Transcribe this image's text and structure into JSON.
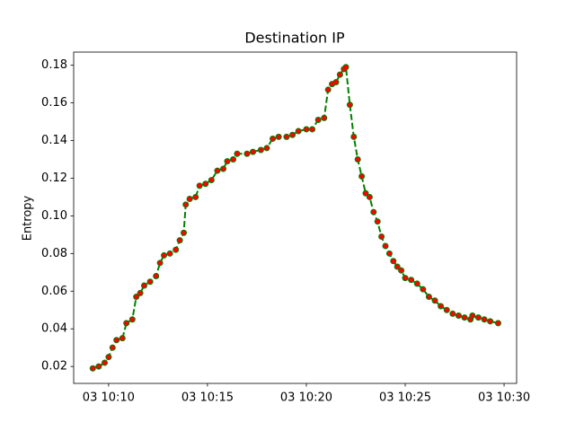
{
  "chart_data": {
    "type": "line",
    "title": "Destination IP",
    "y_label": "Entropy",
    "x": [
      "03 10:09:12",
      "03 10:09:30",
      "03 10:09:48",
      "03 10:10:00",
      "03 10:10:12",
      "03 10:10:24",
      "03 10:10:42",
      "03 10:10:54",
      "03 10:11:12",
      "03 10:11:24",
      "03 10:11:36",
      "03 10:11:48",
      "03 10:12:06",
      "03 10:12:24",
      "03 10:12:36",
      "03 10:12:48",
      "03 10:13:06",
      "03 10:13:24",
      "03 10:13:36",
      "03 10:13:48",
      "03 10:13:54",
      "03 10:14:06",
      "03 10:14:24",
      "03 10:14:36",
      "03 10:14:54",
      "03 10:15:12",
      "03 10:15:30",
      "03 10:15:48",
      "03 10:16:00",
      "03 10:16:18",
      "03 10:16:30",
      "03 10:17:00",
      "03 10:17:18",
      "03 10:17:42",
      "03 10:18:00",
      "03 10:18:18",
      "03 10:18:36",
      "03 10:19:00",
      "03 10:19:18",
      "03 10:19:36",
      "03 10:20:00",
      "03 10:20:18",
      "03 10:20:36",
      "03 10:20:54",
      "03 10:21:06",
      "03 10:21:18",
      "03 10:21:30",
      "03 10:21:42",
      "03 10:21:54",
      "03 10:22:00",
      "03 10:22:12",
      "03 10:22:24",
      "03 10:22:36",
      "03 10:22:48",
      "03 10:23:00",
      "03 10:23:12",
      "03 10:23:24",
      "03 10:23:36",
      "03 10:23:48",
      "03 10:24:00",
      "03 10:24:12",
      "03 10:24:24",
      "03 10:24:36",
      "03 10:24:48",
      "03 10:25:00",
      "03 10:25:18",
      "03 10:25:36",
      "03 10:25:54",
      "03 10:26:12",
      "03 10:26:30",
      "03 10:26:48",
      "03 10:27:06",
      "03 10:27:24",
      "03 10:27:42",
      "03 10:28:00",
      "03 10:28:18",
      "03 10:28:24",
      "03 10:28:42",
      "03 10:29:00",
      "03 10:29:18",
      "03 10:29:42"
    ],
    "series": [
      {
        "color": "green",
        "marker_color": "red",
        "line_style": "dashed",
        "values": [
          0.019,
          0.02,
          0.022,
          0.025,
          0.03,
          0.034,
          0.035,
          0.043,
          0.045,
          0.057,
          0.059,
          0.063,
          0.065,
          0.068,
          0.075,
          0.079,
          0.08,
          0.082,
          0.087,
          0.091,
          0.106,
          0.109,
          0.11,
          0.116,
          0.117,
          0.119,
          0.124,
          0.125,
          0.129,
          0.13,
          0.133,
          0.133,
          0.134,
          0.135,
          0.136,
          0.141,
          0.142,
          0.142,
          0.143,
          0.145,
          0.146,
          0.146,
          0.151,
          0.152,
          0.167,
          0.17,
          0.171,
          0.175,
          0.178,
          0.179,
          0.159,
          0.142,
          0.13,
          0.121,
          0.112,
          0.11,
          0.102,
          0.097,
          0.089,
          0.084,
          0.08,
          0.076,
          0.073,
          0.071,
          0.067,
          0.066,
          0.064,
          0.061,
          0.057,
          0.055,
          0.052,
          0.05,
          0.048,
          0.047,
          0.046,
          0.045,
          0.047,
          0.046,
          0.045,
          0.044,
          0.043
        ]
      }
    ],
    "xlim": [
      "03 10:08:14",
      "03 10:30:38"
    ],
    "xticks": [
      "03 10:10",
      "03 10:15",
      "03 10:20",
      "03 10:25",
      "03 10:30"
    ],
    "ylim": [
      0.011,
      0.187
    ],
    "yticks": [
      0.02,
      0.04,
      0.06,
      0.08,
      {
        "value": 0.1,
        "label": "0.10"
      },
      0.12,
      0.14,
      0.16,
      0.18
    ],
    "grid": false
  }
}
